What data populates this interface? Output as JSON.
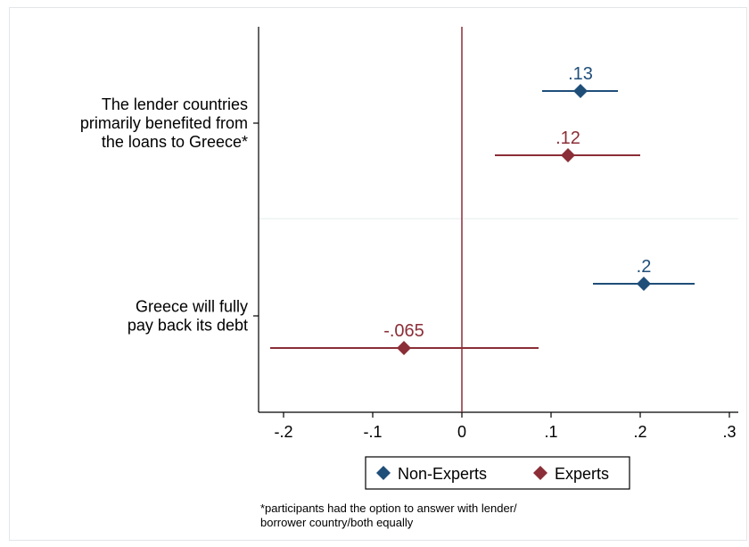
{
  "chart_data": {
    "type": "scatter",
    "orientation": "horizontal coefficient plot with confidence intervals",
    "categories": [
      {
        "lines": [
          "The lender countries",
          "primarily benefited from",
          "the loans to Greece*"
        ]
      },
      {
        "lines": [
          "Greece will fully",
          "pay back its debt"
        ]
      }
    ],
    "series": [
      {
        "name": "Non-Experts",
        "color": "#1f4e79",
        "marker": "diamond",
        "values": [
          0.133,
          0.204
        ],
        "ci_low": [
          0.09,
          0.147
        ],
        "ci_high": [
          0.175,
          0.261
        ],
        "labels": [
          ".13",
          ".2"
        ]
      },
      {
        "name": "Experts",
        "color": "#8b2e37",
        "marker": "diamond",
        "values": [
          0.119,
          -0.065
        ],
        "ci_low": [
          0.037,
          -0.215
        ],
        "ci_high": [
          0.2,
          0.086
        ],
        "labels": [
          ".12",
          "-.065"
        ]
      }
    ],
    "xticks": [
      -0.2,
      -0.1,
      0,
      0.1,
      0.2,
      0.3
    ],
    "xtick_labels": [
      "-.2",
      "-.1",
      "0",
      ".1",
      ".2",
      ".3"
    ],
    "xlim": [
      -0.228,
      0.31
    ],
    "reference_line_x": 0,
    "reference_line_color": "#8b2e37",
    "grid": false,
    "legend_position": "bottom",
    "xlabel": "",
    "ylabel": "",
    "note": [
      "*participants had the option to answer with lender/",
      "borrower country/both equally"
    ]
  }
}
